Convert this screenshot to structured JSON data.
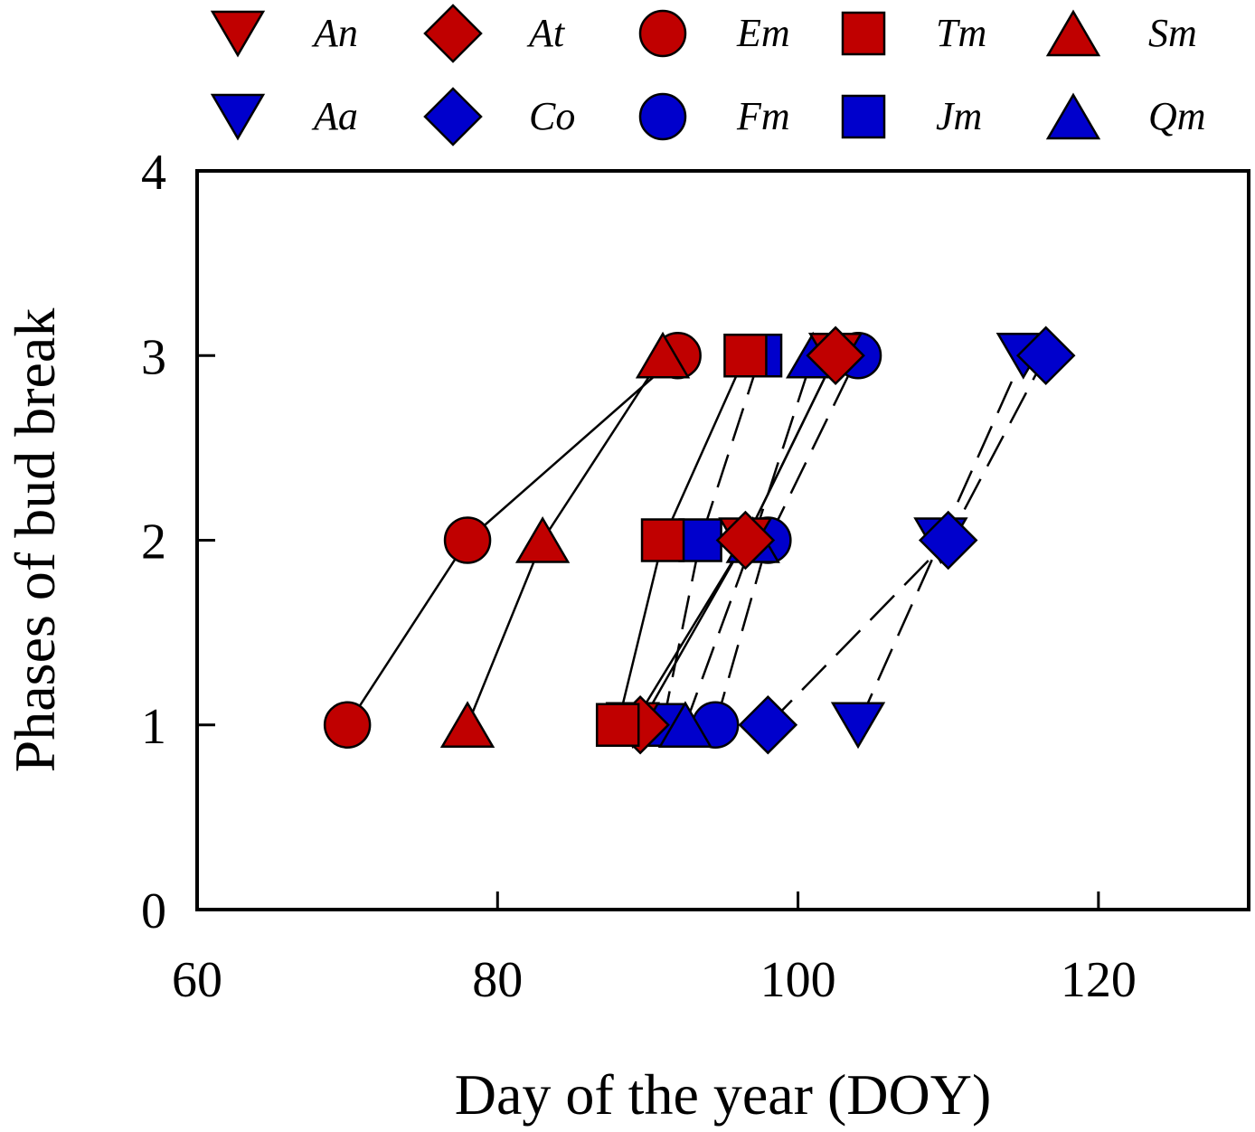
{
  "chart_data": {
    "type": "line",
    "xlabel": "Day of the year (DOY)",
    "ylabel": "Phases of bud break",
    "xlim": [
      60,
      130
    ],
    "ylim": [
      0,
      4
    ],
    "x_ticks": [
      60,
      80,
      100,
      120
    ],
    "y_ticks": [
      0,
      1,
      2,
      3,
      4
    ],
    "grid": false,
    "legend_placement": "top",
    "colors": {
      "red": "#c00000",
      "blue": "#0000cc",
      "line": "#000000"
    },
    "series": [
      {
        "name": "An",
        "marker": "triangle-down",
        "color": "#c00000",
        "dash": false,
        "points": [
          [
            89,
            1
          ],
          [
            96.5,
            2
          ],
          [
            102.5,
            3
          ]
        ]
      },
      {
        "name": "At",
        "marker": "diamond",
        "color": "#c00000",
        "dash": false,
        "points": [
          [
            89.5,
            1
          ],
          [
            96.5,
            2
          ],
          [
            102.5,
            3
          ]
        ]
      },
      {
        "name": "Em",
        "marker": "circle",
        "color": "#c00000",
        "dash": false,
        "points": [
          [
            70,
            1
          ],
          [
            78,
            2
          ],
          [
            92,
            3
          ]
        ]
      },
      {
        "name": "Tm",
        "marker": "square",
        "color": "#c00000",
        "dash": false,
        "points": [
          [
            88,
            1
          ],
          [
            91,
            2
          ],
          [
            96.5,
            3
          ]
        ]
      },
      {
        "name": "Sm",
        "marker": "triangle-up",
        "color": "#c00000",
        "dash": false,
        "points": [
          [
            78,
            1
          ],
          [
            83,
            2
          ],
          [
            91,
            3
          ]
        ]
      },
      {
        "name": "Aa",
        "marker": "triangle-down",
        "color": "#0000cc",
        "dash": true,
        "points": [
          [
            104,
            1
          ],
          [
            109.5,
            2
          ],
          [
            115,
            3
          ]
        ]
      },
      {
        "name": "Co",
        "marker": "diamond",
        "color": "#0000cc",
        "dash": true,
        "points": [
          [
            98,
            1
          ],
          [
            110,
            2
          ],
          [
            116.5,
            3
          ]
        ]
      },
      {
        "name": "Fm",
        "marker": "circle",
        "color": "#0000cc",
        "dash": true,
        "points": [
          [
            94.5,
            1
          ],
          [
            98,
            2
          ],
          [
            104,
            3
          ]
        ]
      },
      {
        "name": "Jm",
        "marker": "square",
        "color": "#0000cc",
        "dash": true,
        "points": [
          [
            91,
            1
          ],
          [
            93.5,
            2
          ],
          [
            97.5,
            3
          ]
        ]
      },
      {
        "name": "Qm",
        "marker": "triangle-up",
        "color": "#0000cc",
        "dash": true,
        "points": [
          [
            92.5,
            1
          ],
          [
            97,
            2
          ],
          [
            101,
            3
          ]
        ]
      }
    ]
  }
}
